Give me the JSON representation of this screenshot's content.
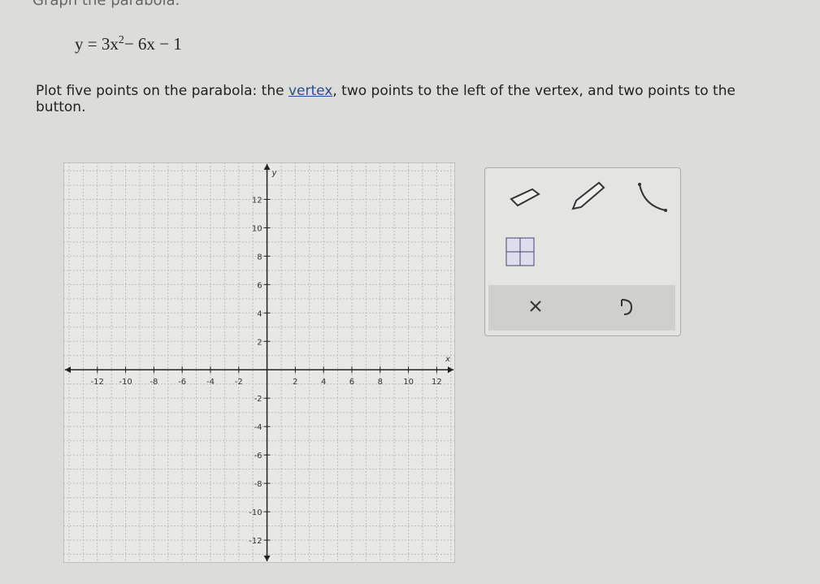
{
  "header": {
    "title": "Graph the parabola."
  },
  "equation": {
    "base": "y = 3x",
    "exponent": "2",
    "rest": "− 6x − 1"
  },
  "instruction": {
    "before": "Plot five points on the parabola: the ",
    "link": "vertex",
    "after": ", two points to the left of the vertex, and two points to the",
    "line2": "button."
  },
  "graph": {
    "xlim": [
      -14.4,
      13.3
    ],
    "ylim": [
      -13.6,
      14.6
    ],
    "xticks": [
      -12,
      -10,
      -8,
      -6,
      -4,
      -2,
      2,
      4,
      6,
      8,
      10,
      12
    ],
    "yticks": [
      -12,
      -10,
      -8,
      -6,
      -4,
      -2,
      2,
      4,
      6,
      8,
      10,
      12
    ],
    "xlabel": "x",
    "ylabel": "y"
  }
}
